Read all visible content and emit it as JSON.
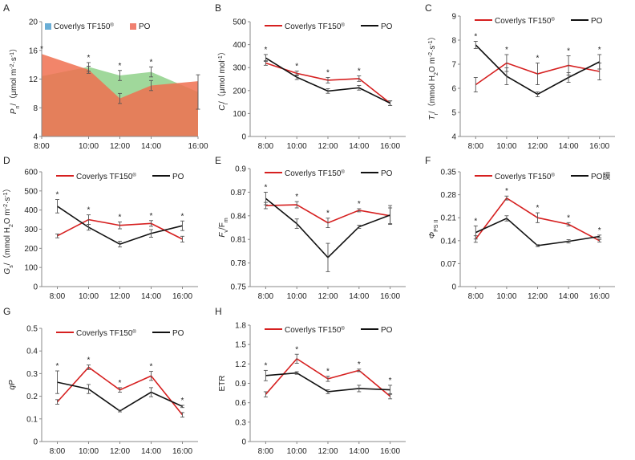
{
  "chart_data": [
    {
      "panel": "A",
      "type": "area",
      "ylabel": "Pn/（μmol·m⁻²·s⁻¹）",
      "ylabel_parts": [
        {
          "t": "P"
        },
        {
          "t": "n",
          "sub": true
        },
        {
          "t": "/（μmol m"
        },
        {
          "t": "-2",
          "sup": true
        },
        {
          "t": "·s"
        },
        {
          "t": "-1",
          "sup": true
        },
        {
          "t": "）"
        }
      ],
      "ylim": [
        4,
        20
      ],
      "yticks": [
        "4",
        "8",
        "12",
        "16",
        "20"
      ],
      "categories": [
        "8:00",
        "10:00",
        "12:00",
        "14:00",
        "16:00"
      ],
      "series": [
        {
          "name": "Coverlys TF150®",
          "color": "#6aaed6",
          "fill": "#8fd18a",
          "values": [
            12.4,
            13.7,
            12.5,
            13.0,
            10.2
          ],
          "err": [
            0,
            0.6,
            0.7,
            0.7,
            2.4
          ]
        },
        {
          "name": "PO",
          "color": "#f08070",
          "fill": "#f07050",
          "values": [
            15.5,
            13.3,
            9.3,
            11.1,
            11.7
          ],
          "err": [
            0,
            0.5,
            0.7,
            0.7,
            0
          ]
        }
      ],
      "stars": [
        "8:00",
        "10:00",
        "12:00",
        "14:00"
      ],
      "legend": "top-left"
    },
    {
      "panel": "B",
      "type": "line",
      "ylabel_parts": [
        {
          "t": "C"
        },
        {
          "t": "i",
          "sub": true
        },
        {
          "t": "/（μmol mol"
        },
        {
          "t": "-1",
          "sup": true
        },
        {
          "t": "）"
        }
      ],
      "ylim": [
        0,
        500
      ],
      "yticks": [
        "0",
        "100",
        "200",
        "300",
        "400",
        "500"
      ],
      "categories": [
        "8:00",
        "10:00",
        "12:00",
        "14:00",
        "16:00"
      ],
      "series": [
        {
          "name": "Coverlys TF150®",
          "color": "#d62020",
          "values": [
            320,
            275,
            245,
            252,
            145
          ],
          "err": [
            10,
            10,
            12,
            12,
            10
          ]
        },
        {
          "name": "PO",
          "color": "#111111",
          "values": [
            342,
            258,
            198,
            212,
            145
          ],
          "err": [
            15,
            10,
            10,
            10,
            10
          ]
        }
      ],
      "stars": [
        "8:00",
        "10:00",
        "12:00",
        "14:00"
      ],
      "legend": "top"
    },
    {
      "panel": "C",
      "type": "line",
      "ylabel_parts": [
        {
          "t": "T"
        },
        {
          "t": "r",
          "sub": true
        },
        {
          "t": "/（mmol H"
        },
        {
          "t": "2",
          "sub": true
        },
        {
          "t": "O m"
        },
        {
          "t": "-2",
          "sup": true
        },
        {
          "t": "·s"
        },
        {
          "t": "-1",
          "sup": true
        },
        {
          "t": "）"
        }
      ],
      "ylim": [
        4,
        9
      ],
      "yticks": [
        "4",
        "5",
        "6",
        "7",
        "8",
        "9"
      ],
      "categories": [
        "8:00",
        "10:00",
        "12:00",
        "14:00",
        "16:00"
      ],
      "series": [
        {
          "name": "Coverlys TF150®",
          "color": "#d62020",
          "values": [
            6.15,
            7.05,
            6.6,
            6.95,
            6.7
          ],
          "err": [
            0.3,
            0.35,
            0.45,
            0.4,
            0.35
          ]
        },
        {
          "name": "PO",
          "color": "#111111",
          "values": [
            7.8,
            6.5,
            5.75,
            6.45,
            7.1
          ],
          "err": [
            0.15,
            0.35,
            0.1,
            0.2,
            0.3
          ]
        }
      ],
      "stars": [
        "8:00",
        "10:00",
        "12:00",
        "14:00",
        "16:00"
      ],
      "legend": "top"
    },
    {
      "panel": "D",
      "type": "line",
      "ylabel_parts": [
        {
          "t": "G"
        },
        {
          "t": "s",
          "sub": true
        },
        {
          "t": "/（mmol H"
        },
        {
          "t": "2",
          "sub": true
        },
        {
          "t": "O m"
        },
        {
          "t": "-2",
          "sup": true
        },
        {
          "t": "·s"
        },
        {
          "t": "-1",
          "sup": true
        },
        {
          "t": "）"
        }
      ],
      "ylim": [
        0,
        600
      ],
      "yticks": [
        "0",
        "100",
        "200",
        "300",
        "400",
        "500",
        "600"
      ],
      "categories": [
        "8:00",
        "10:00",
        "12:00",
        "14:00",
        "16:00"
      ],
      "series": [
        {
          "name": "Coverlys TF150®",
          "color": "#d62020",
          "values": [
            265,
            350,
            320,
            330,
            248
          ],
          "err": [
            10,
            25,
            18,
            15,
            15
          ]
        },
        {
          "name": "PO",
          "color": "#111111",
          "values": [
            420,
            310,
            222,
            278,
            318
          ],
          "err": [
            35,
            15,
            15,
            20,
            25
          ]
        }
      ],
      "stars": [
        "8:00",
        "10:00",
        "12:00",
        "14:00",
        "16:00"
      ],
      "legend": "top"
    },
    {
      "panel": "E",
      "type": "line",
      "ylabel_parts": [
        {
          "t": "F"
        },
        {
          "t": "v",
          "sub": true
        },
        {
          "t": "/F"
        },
        {
          "t": "m",
          "sub": true
        }
      ],
      "ylim": [
        0.75,
        0.9
      ],
      "yticks": [
        "0.75",
        "0.78",
        "0.81",
        "0.84",
        "0.87",
        "0.9"
      ],
      "categories": [
        "8:00",
        "10:00",
        "12:00",
        "14:00",
        "16:00"
      ],
      "series": [
        {
          "name": "Coverlys TF150®",
          "color": "#d62020",
          "values": [
            0.853,
            0.854,
            0.831,
            0.847,
            0.84
          ],
          "err": [
            0.004,
            0.004,
            0.006,
            0.002,
            0.01
          ]
        },
        {
          "name": "PO",
          "color": "#111111",
          "values": [
            0.862,
            0.83,
            0.787,
            0.826,
            0.841
          ],
          "err": [
            0.008,
            0.006,
            0.018,
            0.002,
            0.012
          ]
        }
      ],
      "stars": [
        "8:00",
        "10:00",
        "12:00",
        "14:00"
      ],
      "legend": "top"
    },
    {
      "panel": "F",
      "type": "line",
      "ylabel_parts": [
        {
          "t": "Φ"
        },
        {
          "t": "PS II",
          "sub": true
        }
      ],
      "ylim": [
        0,
        0.35
      ],
      "yticks": [
        "0",
        "0.07",
        "0.14",
        "0.21",
        "0.28",
        "0.35"
      ],
      "categories": [
        "8:00",
        "10:00",
        "12:00",
        "14:00",
        "16:00"
      ],
      "series": [
        {
          "name": "Coverlys TF150®",
          "color": "#d62020",
          "values": [
            0.145,
            0.27,
            0.21,
            0.19,
            0.14
          ],
          "err": [
            0.01,
            0.006,
            0.015,
            0.005,
            0.004
          ]
        },
        {
          "name": "PO膜",
          "color": "#111111",
          "values": [
            0.165,
            0.208,
            0.125,
            0.138,
            0.153
          ],
          "err": [
            0.02,
            0.008,
            0.003,
            0.005,
            0.004
          ]
        }
      ],
      "stars": [
        "8:00",
        "10:00",
        "12:00",
        "14:00",
        "16:00"
      ],
      "legend": "top"
    },
    {
      "panel": "G",
      "type": "line",
      "ylabel_parts": [
        {
          "t": "qP"
        }
      ],
      "ylim": [
        0,
        0.5
      ],
      "yticks": [
        "0",
        "0.1",
        "0.2",
        "0.3",
        "0.4",
        "0.5"
      ],
      "categories": [
        "8:00",
        "10:00",
        "12:00",
        "14:00",
        "16:00"
      ],
      "series": [
        {
          "name": "Coverlys TF150®",
          "color": "#d62020",
          "values": [
            0.175,
            0.328,
            0.228,
            0.29,
            0.118
          ],
          "err": [
            0.01,
            0.01,
            0.01,
            0.02,
            0.01
          ]
        },
        {
          "name": "PO",
          "color": "#111111",
          "values": [
            0.262,
            0.232,
            0.135,
            0.218,
            0.155
          ],
          "err": [
            0.05,
            0.02,
            0.004,
            0.02,
            0.005
          ]
        }
      ],
      "stars": [
        "8:00",
        "10:00",
        "12:00",
        "14:00",
        "16:00"
      ],
      "legend": "top"
    },
    {
      "panel": "H",
      "type": "line",
      "ylabel_parts": [
        {
          "t": "ETR"
        }
      ],
      "ylim": [
        0,
        1.8
      ],
      "yticks": [
        "0",
        "0.3",
        "0.6",
        "0.9",
        "1.2",
        "1.5",
        "1.8"
      ],
      "categories": [
        "8:00",
        "10:00",
        "12:00",
        "14:00",
        "16:00"
      ],
      "series": [
        {
          "name": "Coverlys TF150®",
          "color": "#d62020",
          "values": [
            0.73,
            1.28,
            0.97,
            1.1,
            0.7
          ],
          "err": [
            0.04,
            0.07,
            0.04,
            0.02,
            0.04
          ]
        },
        {
          "name": "PO",
          "color": "#111111",
          "values": [
            1.02,
            1.06,
            0.77,
            0.82,
            0.8
          ],
          "err": [
            0.08,
            0.02,
            0.03,
            0.05,
            0.07
          ]
        }
      ],
      "stars": [
        "8:00",
        "10:00",
        "12:00",
        "14:00",
        "16:00"
      ],
      "legend": "top"
    }
  ]
}
